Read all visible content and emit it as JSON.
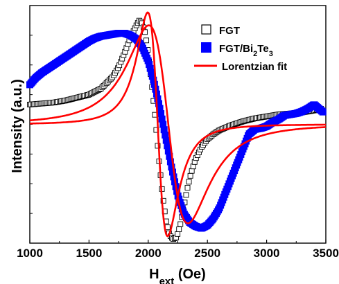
{
  "chart_data": {
    "type": "scatter",
    "xlabel": "H",
    "xlabel_sub": "ext",
    "xlabel_unit": " (Oe)",
    "ylabel": "Intensity (a.u.)",
    "xlim": [
      1000,
      3500
    ],
    "x_ticks": [
      1000,
      1500,
      2000,
      2500,
      3000,
      3500
    ],
    "y_ticks_shown": false,
    "ylim": [
      -1.2,
      1.2
    ],
    "legend_placement": "top-right",
    "colors": {
      "fgt": "#000000",
      "fgt_bi2te3": "#0000ff",
      "fit": "#ff0000"
    },
    "legend": {
      "fgt": "FGT",
      "fgt_bi2te3_parts": [
        "FGT/Bi",
        "2",
        "Te",
        "3"
      ],
      "fit": "Lorentzian fit"
    },
    "series": [
      {
        "name": "FGT",
        "marker": "open-square",
        "points": [
          [
            1000,
            0.2
          ],
          [
            1100,
            0.21
          ],
          [
            1200,
            0.22
          ],
          [
            1300,
            0.24
          ],
          [
            1400,
            0.27
          ],
          [
            1500,
            0.3
          ],
          [
            1600,
            0.36
          ],
          [
            1700,
            0.48
          ],
          [
            1750,
            0.58
          ],
          [
            1800,
            0.72
          ],
          [
            1850,
            0.88
          ],
          [
            1900,
            1.0
          ],
          [
            1925,
            1.05
          ],
          [
            1950,
            1.02
          ],
          [
            1975,
            0.92
          ],
          [
            2000,
            0.72
          ],
          [
            2030,
            0.4
          ],
          [
            2060,
            0.05
          ],
          [
            2090,
            -0.35
          ],
          [
            2120,
            -0.7
          ],
          [
            2150,
            -0.97
          ],
          [
            2180,
            -1.12
          ],
          [
            2210,
            -1.16
          ],
          [
            2240,
            -1.14
          ],
          [
            2270,
            -1.02
          ],
          [
            2300,
            -0.84
          ],
          [
            2330,
            -0.65
          ],
          [
            2360,
            -0.5
          ],
          [
            2400,
            -0.35
          ],
          [
            2450,
            -0.23
          ],
          [
            2500,
            -0.15
          ],
          [
            2550,
            -0.1
          ],
          [
            2600,
            -0.06
          ],
          [
            2700,
            -0.01
          ],
          [
            2800,
            0.03
          ],
          [
            2900,
            0.06
          ],
          [
            3000,
            0.08
          ],
          [
            3100,
            0.1
          ],
          [
            3200,
            0.11
          ],
          [
            3300,
            0.12
          ],
          [
            3400,
            0.14
          ],
          [
            3470,
            0.16
          ]
        ]
      },
      {
        "name": "FGT/Bi2Te3",
        "marker": "filled-square",
        "points": [
          [
            1000,
            0.4
          ],
          [
            1050,
            0.47
          ],
          [
            1100,
            0.52
          ],
          [
            1150,
            0.56
          ],
          [
            1200,
            0.6
          ],
          [
            1250,
            0.64
          ],
          [
            1300,
            0.68
          ],
          [
            1350,
            0.72
          ],
          [
            1400,
            0.76
          ],
          [
            1450,
            0.8
          ],
          [
            1500,
            0.84
          ],
          [
            1550,
            0.87
          ],
          [
            1600,
            0.89
          ],
          [
            1650,
            0.9
          ],
          [
            1700,
            0.91
          ],
          [
            1750,
            0.92
          ],
          [
            1800,
            0.92
          ],
          [
            1850,
            0.9
          ],
          [
            1900,
            0.86
          ],
          [
            1950,
            0.78
          ],
          [
            2000,
            0.64
          ],
          [
            2050,
            0.42
          ],
          [
            2100,
            0.15
          ],
          [
            2150,
            -0.15
          ],
          [
            2200,
            -0.45
          ],
          [
            2250,
            -0.72
          ],
          [
            2300,
            -0.9
          ],
          [
            2350,
            -0.99
          ],
          [
            2400,
            -1.03
          ],
          [
            2450,
            -1.05
          ],
          [
            2500,
            -1.02
          ],
          [
            2550,
            -0.95
          ],
          [
            2600,
            -0.85
          ],
          [
            2650,
            -0.7
          ],
          [
            2700,
            -0.55
          ],
          [
            2750,
            -0.4
          ],
          [
            2800,
            -0.25
          ],
          [
            2850,
            -0.1
          ],
          [
            2900,
            -0.05
          ],
          [
            2950,
            -0.04
          ],
          [
            3000,
            -0.02
          ],
          [
            3050,
            0.02
          ],
          [
            3100,
            0.05
          ],
          [
            3150,
            0.09
          ],
          [
            3200,
            0.1
          ],
          [
            3250,
            0.11
          ],
          [
            3300,
            0.13
          ],
          [
            3350,
            0.16
          ],
          [
            3400,
            0.2
          ],
          [
            3450,
            0.15
          ],
          [
            3480,
            0.12
          ]
        ]
      },
      {
        "name": "Lorentzian fit",
        "marker": "line",
        "curves": [
          {
            "H0": 2080,
            "dH": 168,
            "A": 1.13,
            "base": 0.0
          },
          {
            "H0": 2170,
            "dH": 330,
            "A": 1.0,
            "base": 0.0
          }
        ]
      }
    ]
  }
}
